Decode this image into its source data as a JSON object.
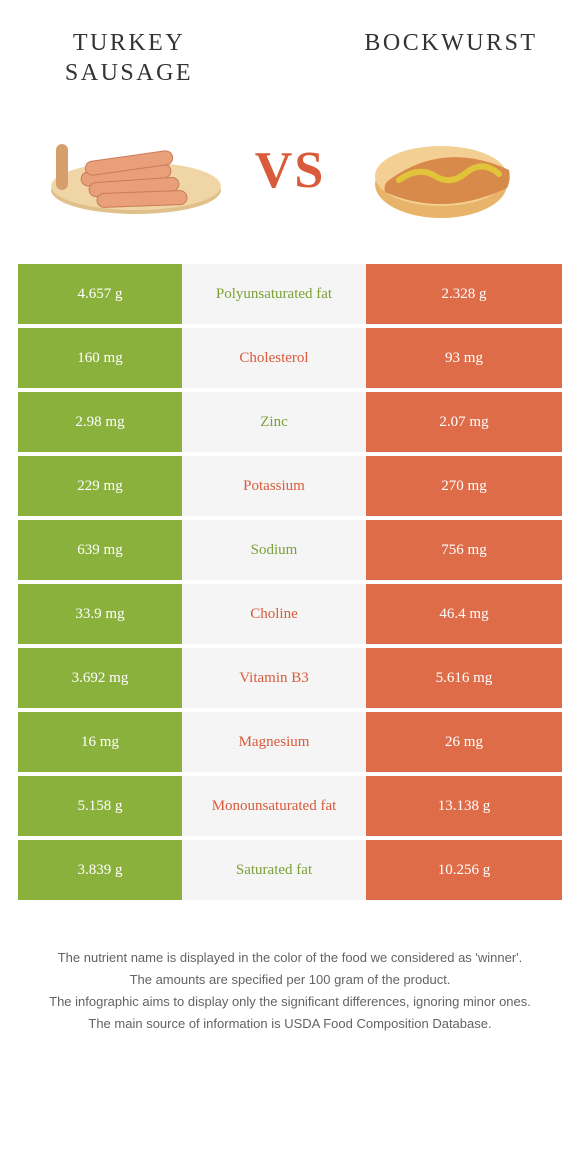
{
  "colors": {
    "left": "#8bb13d",
    "right": "#df6c48",
    "midbg": "#f5f5f5",
    "accent": "#d95b3b",
    "label_green": "#7da038",
    "label_orange": "#d95b3b"
  },
  "foods": {
    "left": {
      "name": "TURKEY SAUSAGE"
    },
    "right": {
      "name": "BOCKWURST"
    }
  },
  "vs": "VS",
  "rows": [
    {
      "left": "4.657 g",
      "label": "Polyunsaturated fat",
      "right": "2.328 g",
      "winner": "left"
    },
    {
      "left": "160 mg",
      "label": "Cholesterol",
      "right": "93 mg",
      "winner": "right"
    },
    {
      "left": "2.98 mg",
      "label": "Zinc",
      "right": "2.07 mg",
      "winner": "left"
    },
    {
      "left": "229 mg",
      "label": "Potassium",
      "right": "270 mg",
      "winner": "right"
    },
    {
      "left": "639 mg",
      "label": "Sodium",
      "right": "756 mg",
      "winner": "left"
    },
    {
      "left": "33.9 mg",
      "label": "Choline",
      "right": "46.4 mg",
      "winner": "right"
    },
    {
      "left": "3.692 mg",
      "label": "Vitamin B3",
      "right": "5.616 mg",
      "winner": "right"
    },
    {
      "left": "16 mg",
      "label": "Magnesium",
      "right": "26 mg",
      "winner": "right"
    },
    {
      "left": "5.158 g",
      "label": "Monounsaturated fat",
      "right": "13.138 g",
      "winner": "right"
    },
    {
      "left": "3.839 g",
      "label": "Saturated fat",
      "right": "10.256 g",
      "winner": "left"
    }
  ],
  "footer": [
    "The nutrient name is displayed in the color of the food we considered as 'winner'.",
    "The amounts are specified per 100 gram of the product.",
    "The infographic aims to display only the significant differences, ignoring minor ones.",
    "The main source of information is USDA Food Composition Database."
  ]
}
